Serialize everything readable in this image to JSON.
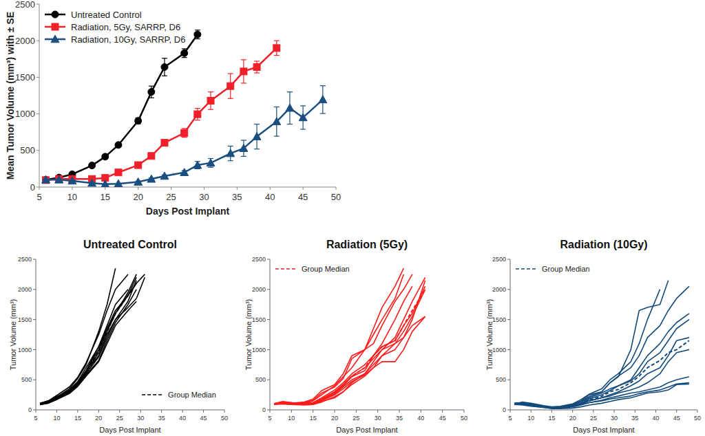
{
  "chart_data": [
    {
      "type": "line",
      "x_label": "Days Post Implant",
      "y_label": "Mean Tumor Volume (mm³) with ± SE",
      "x": [
        6,
        8,
        10,
        13,
        15,
        17,
        20,
        22,
        24,
        27,
        29,
        31,
        34,
        36,
        38,
        41,
        43,
        45,
        48
      ],
      "xlim": [
        5,
        50
      ],
      "xticks": [
        5,
        10,
        15,
        20,
        25,
        30,
        35,
        40,
        45,
        50
      ],
      "ylim": [
        0,
        2500
      ],
      "yticks": [
        0,
        500,
        1000,
        1500,
        2000,
        2500
      ],
      "grid": false,
      "legend": "upper left",
      "series": [
        {
          "name": "Untreated Control",
          "color": "#000000",
          "marker": "circle",
          "values": [
            100,
            130,
            175,
            295,
            415,
            575,
            905,
            1300,
            1640,
            1830,
            2085,
            null,
            null,
            null,
            null,
            null,
            null,
            null,
            null
          ],
          "errors": [
            5,
            10,
            15,
            20,
            20,
            25,
            40,
            80,
            120,
            60,
            60,
            null,
            null,
            null,
            null,
            null,
            null,
            null,
            null
          ]
        },
        {
          "name": "Radiation, 5Gy, SARRP, D6",
          "color": "#f0202a",
          "marker": "square",
          "values": [
            95,
            110,
            110,
            110,
            125,
            200,
            300,
            425,
            605,
            740,
            995,
            1180,
            1380,
            1580,
            1640,
            1900,
            null,
            null,
            null
          ],
          "errors": [
            5,
            5,
            10,
            10,
            10,
            15,
            20,
            20,
            40,
            60,
            80,
            120,
            170,
            160,
            80,
            100,
            null,
            null,
            null
          ]
        },
        {
          "name": "Radiation, 10Gy, SARRP, D6",
          "color": "#1b4f80",
          "marker": "triangle",
          "values": [
            100,
            100,
            85,
            55,
            40,
            45,
            70,
            110,
            150,
            200,
            300,
            330,
            460,
            530,
            690,
            895,
            1080,
            950,
            1195
          ],
          "errors": [
            5,
            5,
            5,
            5,
            5,
            5,
            10,
            15,
            15,
            25,
            50,
            60,
            100,
            110,
            170,
            200,
            220,
            160,
            190
          ]
        }
      ]
    },
    {
      "type": "line",
      "title": "Untreated Control",
      "x_label": "Days Post Implant",
      "y_label": "Tumor Volume (mm³)",
      "x": [
        6,
        8,
        10,
        13,
        15,
        17,
        20,
        22,
        24,
        27,
        29,
        31
      ],
      "xlim": [
        5,
        50
      ],
      "xticks": [
        5,
        10,
        15,
        20,
        25,
        30,
        35,
        40,
        45,
        50
      ],
      "ylim": [
        0,
        2500
      ],
      "yticks": [
        0,
        500,
        1000,
        1500,
        2000,
        2500
      ],
      "grid": false,
      "legend": "lower right",
      "series": [
        {
          "color": "#000000",
          "values": [
            95,
            130,
            210,
            350,
            520,
            750,
            1300,
            1750,
            2350,
            null,
            null,
            null
          ]
        },
        {
          "color": "#000000",
          "values": [
            105,
            150,
            240,
            380,
            540,
            780,
            1250,
            1650,
            2000,
            2250,
            null,
            null
          ]
        },
        {
          "color": "#000000",
          "values": [
            90,
            120,
            190,
            300,
            430,
            650,
            1050,
            1400,
            1750,
            2000,
            null,
            null
          ]
        },
        {
          "color": "#000000",
          "values": [
            100,
            140,
            200,
            330,
            470,
            700,
            1050,
            1350,
            1600,
            1950,
            2250,
            null
          ]
        },
        {
          "color": "#000000",
          "values": [
            110,
            150,
            220,
            320,
            450,
            640,
            900,
            1250,
            1500,
            1800,
            2150,
            null
          ]
        },
        {
          "color": "#000000",
          "values": [
            85,
            110,
            170,
            280,
            400,
            580,
            820,
            1150,
            1450,
            1750,
            2000,
            null
          ]
        },
        {
          "color": "#000000",
          "values": [
            100,
            130,
            190,
            300,
            430,
            620,
            950,
            1300,
            1600,
            1900,
            2100,
            2250
          ]
        },
        {
          "color": "#000000",
          "values": [
            95,
            120,
            180,
            290,
            420,
            600,
            880,
            1200,
            1500,
            1700,
            1850,
            2200
          ]
        },
        {
          "color": "#000000",
          "values": [
            105,
            130,
            200,
            300,
            450,
            650,
            1000,
            1350,
            1650,
            1900,
            2200,
            null
          ]
        },
        {
          "color": "#000000",
          "values": [
            90,
            115,
            175,
            270,
            390,
            560,
            800,
            1100,
            1400,
            1650,
            1800,
            null
          ]
        },
        {
          "name": "Group Median",
          "color": "#000000",
          "line_style": "dashed",
          "values": [
            98,
            130,
            195,
            300,
            440,
            645,
            975,
            1300,
            1600,
            1900,
            2100,
            null
          ]
        }
      ]
    },
    {
      "type": "line",
      "title": "Radiation (5Gy)",
      "x_label": "Days Post Implant",
      "y_label": "Tumor Volume (mm³)",
      "x": [
        6,
        8,
        10,
        13,
        15,
        17,
        20,
        22,
        24,
        27,
        29,
        31,
        34,
        36,
        38,
        41
      ],
      "xlim": [
        5,
        50
      ],
      "xticks": [
        5,
        10,
        15,
        20,
        25,
        30,
        35,
        40,
        45,
        50
      ],
      "ylim": [
        0,
        2500
      ],
      "yticks": [
        0,
        500,
        1000,
        1500,
        2000,
        2500
      ],
      "grid": false,
      "legend": "upper left",
      "series": [
        {
          "color": "#ff1a1a",
          "values": [
            100,
            120,
            110,
            130,
            180,
            320,
            420,
            600,
            900,
            1000,
            1350,
            1700,
            2050,
            2350,
            null,
            null
          ]
        },
        {
          "color": "#ff1a1a",
          "values": [
            95,
            110,
            100,
            120,
            160,
            280,
            380,
            520,
            850,
            1000,
            1250,
            1500,
            1850,
            2250,
            null,
            null
          ]
        },
        {
          "color": "#ff1a1a",
          "values": [
            100,
            130,
            120,
            110,
            150,
            250,
            400,
            550,
            700,
            1000,
            1100,
            1400,
            1800,
            2000,
            2250,
            null
          ]
        },
        {
          "color": "#ff1a1a",
          "values": [
            90,
            100,
            90,
            100,
            120,
            200,
            330,
            450,
            600,
            750,
            900,
            1100,
            1500,
            1800,
            2050,
            null
          ]
        },
        {
          "color": "#ff1a1a",
          "values": [
            100,
            110,
            120,
            100,
            110,
            180,
            300,
            420,
            560,
            700,
            850,
            1000,
            1200,
            1500,
            1800,
            2200
          ]
        },
        {
          "color": "#ff1a1a",
          "values": [
            95,
            120,
            110,
            110,
            120,
            170,
            280,
            400,
            550,
            650,
            900,
            1050,
            1150,
            1400,
            1600,
            2050
          ]
        },
        {
          "color": "#ff1a1a",
          "values": [
            100,
            110,
            100,
            90,
            100,
            160,
            260,
            380,
            500,
            600,
            800,
            1000,
            1100,
            1200,
            1400,
            1550
          ]
        },
        {
          "color": "#ff1a1a",
          "values": [
            105,
            140,
            120,
            100,
            110,
            150,
            250,
            350,
            470,
            580,
            700,
            800,
            800,
            1000,
            1300,
            1550
          ]
        },
        {
          "color": "#ff1a1a",
          "values": [
            95,
            100,
            90,
            80,
            90,
            130,
            220,
            300,
            420,
            560,
            700,
            900,
            1000,
            1200,
            1500,
            2150
          ]
        },
        {
          "color": "#ff1a1a",
          "values": [
            100,
            120,
            110,
            100,
            110,
            140,
            200,
            300,
            450,
            600,
            750,
            900,
            1100,
            1300,
            1550,
            2000
          ]
        },
        {
          "name": "Group Median",
          "color": "#ff1a1a",
          "line_style": "dashed",
          "values": [
            98,
            115,
            110,
            100,
            115,
            175,
            290,
            410,
            560,
            700,
            900,
            1050,
            1150,
            1400,
            1650,
            2000
          ]
        }
      ]
    },
    {
      "type": "line",
      "title": "Radiation (10Gy)",
      "x_label": "Days Post Implant",
      "y_label": "Tumor Volume (mm³)",
      "x": [
        6,
        8,
        10,
        13,
        15,
        17,
        20,
        22,
        24,
        27,
        29,
        31,
        34,
        36,
        38,
        41,
        43,
        45,
        48
      ],
      "xlim": [
        5,
        50
      ],
      "xticks": [
        5,
        10,
        15,
        20,
        25,
        30,
        35,
        40,
        45,
        50
      ],
      "ylim": [
        0,
        2500
      ],
      "yticks": [
        0,
        500,
        1000,
        1500,
        2000,
        2500
      ],
      "grid": false,
      "legend": "upper left",
      "series": [
        {
          "color": "#134a7c",
          "values": [
            110,
            120,
            100,
            60,
            40,
            50,
            90,
            150,
            250,
            300,
            450,
            550,
            1000,
            1650,
            1700,
            1750,
            2150,
            null,
            null
          ]
        },
        {
          "color": "#134a7c",
          "values": [
            100,
            130,
            110,
            70,
            50,
            60,
            100,
            170,
            260,
            350,
            500,
            600,
            800,
            1100,
            1500,
            2000,
            null,
            null,
            null
          ]
        },
        {
          "color": "#134a7c",
          "values": [
            95,
            110,
            90,
            60,
            40,
            40,
            80,
            140,
            220,
            300,
            450,
            560,
            700,
            900,
            1200,
            1400,
            1650,
            1850,
            2050
          ]
        },
        {
          "color": "#134a7c",
          "values": [
            100,
            100,
            80,
            50,
            30,
            40,
            70,
            120,
            200,
            280,
            350,
            400,
            500,
            700,
            900,
            1100,
            1300,
            1450,
            1600
          ]
        },
        {
          "color": "#134a7c",
          "values": [
            90,
            90,
            80,
            50,
            30,
            40,
            60,
            100,
            180,
            250,
            320,
            400,
            480,
            600,
            800,
            950,
            1150,
            1350,
            1500
          ]
        },
        {
          "color": "#134a7c",
          "values": [
            100,
            110,
            90,
            60,
            40,
            40,
            60,
            90,
            150,
            200,
            250,
            300,
            400,
            480,
            600,
            700,
            900,
            1150,
            1200
          ]
        },
        {
          "color": "#134a7c",
          "values": [
            105,
            100,
            80,
            50,
            40,
            40,
            60,
            100,
            150,
            200,
            230,
            280,
            330,
            380,
            450,
            600,
            800,
            950,
            1000
          ]
        },
        {
          "color": "#134a7c",
          "values": [
            95,
            90,
            70,
            40,
            30,
            30,
            50,
            80,
            120,
            160,
            200,
            230,
            280,
            300,
            330,
            380,
            450,
            500,
            550
          ]
        },
        {
          "color": "#134a7c",
          "values": [
            110,
            120,
            100,
            60,
            40,
            40,
            60,
            90,
            120,
            150,
            180,
            200,
            230,
            270,
            300,
            330,
            380,
            430,
            450
          ]
        },
        {
          "color": "#134a7c",
          "values": [
            90,
            80,
            60,
            40,
            20,
            20,
            30,
            50,
            80,
            110,
            140,
            170,
            200,
            240,
            280,
            300,
            330,
            420,
            430
          ]
        },
        {
          "name": "Group Median",
          "color": "#134a7c",
          "line_style": "dashed",
          "values": [
            100,
            105,
            85,
            55,
            38,
            40,
            60,
            100,
            165,
            225,
            300,
            340,
            450,
            560,
            700,
            820,
            950,
            1000,
            1150
          ]
        }
      ]
    }
  ]
}
